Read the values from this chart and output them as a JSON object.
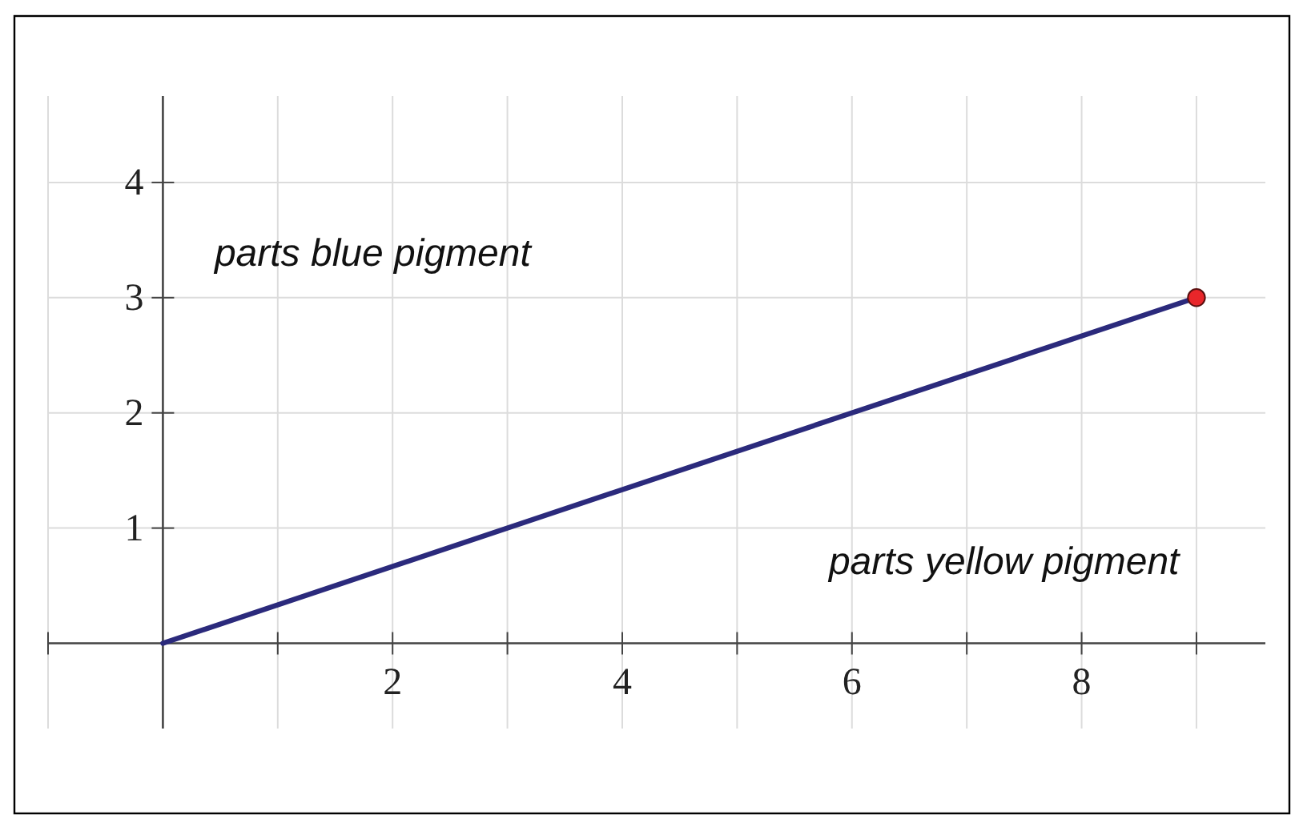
{
  "chart_data": {
    "type": "line",
    "xlabel": "parts yellow pigment",
    "ylabel": "parts blue pigment",
    "x": [
      0,
      9
    ],
    "series": [
      {
        "color": "#2b2a7c",
        "values": [
          0,
          3
        ],
        "marker": "none"
      },
      {
        "type": "scatter",
        "color": "#e8262a",
        "x": [
          9
        ],
        "values": [
          3
        ],
        "marker": "circle"
      }
    ],
    "xlim": [
      -1,
      9.6
    ],
    "ylim": [
      -0.74,
      4.75
    ],
    "xticks": [
      {
        "value": -1,
        "label": null
      },
      {
        "value": 1,
        "label": null
      },
      2,
      {
        "value": 3,
        "label": null
      },
      4,
      {
        "value": 5,
        "label": null
      },
      6,
      {
        "value": 7,
        "label": null
      },
      8,
      {
        "value": 9,
        "label": null
      }
    ],
    "yticks": [
      1,
      2,
      3,
      4
    ],
    "grid": true
  }
}
